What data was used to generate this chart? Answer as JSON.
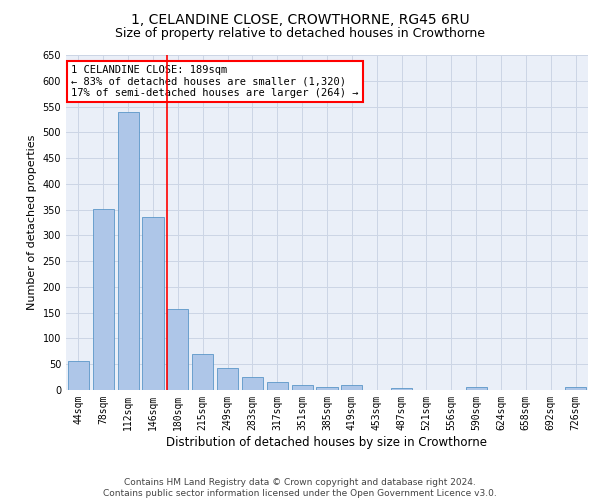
{
  "title": "1, CELANDINE CLOSE, CROWTHORNE, RG45 6RU",
  "subtitle": "Size of property relative to detached houses in Crowthorne",
  "xlabel": "Distribution of detached houses by size in Crowthorne",
  "ylabel": "Number of detached properties",
  "categories": [
    "44sqm",
    "78sqm",
    "112sqm",
    "146sqm",
    "180sqm",
    "215sqm",
    "249sqm",
    "283sqm",
    "317sqm",
    "351sqm",
    "385sqm",
    "419sqm",
    "453sqm",
    "487sqm",
    "521sqm",
    "556sqm",
    "590sqm",
    "624sqm",
    "658sqm",
    "692sqm",
    "726sqm"
  ],
  "values": [
    57,
    352,
    540,
    336,
    157,
    70,
    42,
    25,
    16,
    10,
    5,
    10,
    0,
    4,
    0,
    0,
    5,
    0,
    0,
    0,
    5
  ],
  "bar_color": "#aec6e8",
  "bar_edge_color": "#5b96c8",
  "vline_color": "red",
  "vline_pos": 3.55,
  "annotation_text": "1 CELANDINE CLOSE: 189sqm\n← 83% of detached houses are smaller (1,320)\n17% of semi-detached houses are larger (264) →",
  "annotation_box_color": "white",
  "annotation_box_edge": "red",
  "ylim": [
    0,
    650
  ],
  "yticks": [
    0,
    50,
    100,
    150,
    200,
    250,
    300,
    350,
    400,
    450,
    500,
    550,
    600,
    650
  ],
  "grid_color": "#ccd5e5",
  "bg_color": "#eaeff8",
  "footnote": "Contains HM Land Registry data © Crown copyright and database right 2024.\nContains public sector information licensed under the Open Government Licence v3.0.",
  "title_fontsize": 10,
  "subtitle_fontsize": 9,
  "xlabel_fontsize": 8.5,
  "ylabel_fontsize": 8,
  "tick_fontsize": 7,
  "annot_fontsize": 7.5,
  "footnote_fontsize": 6.5
}
